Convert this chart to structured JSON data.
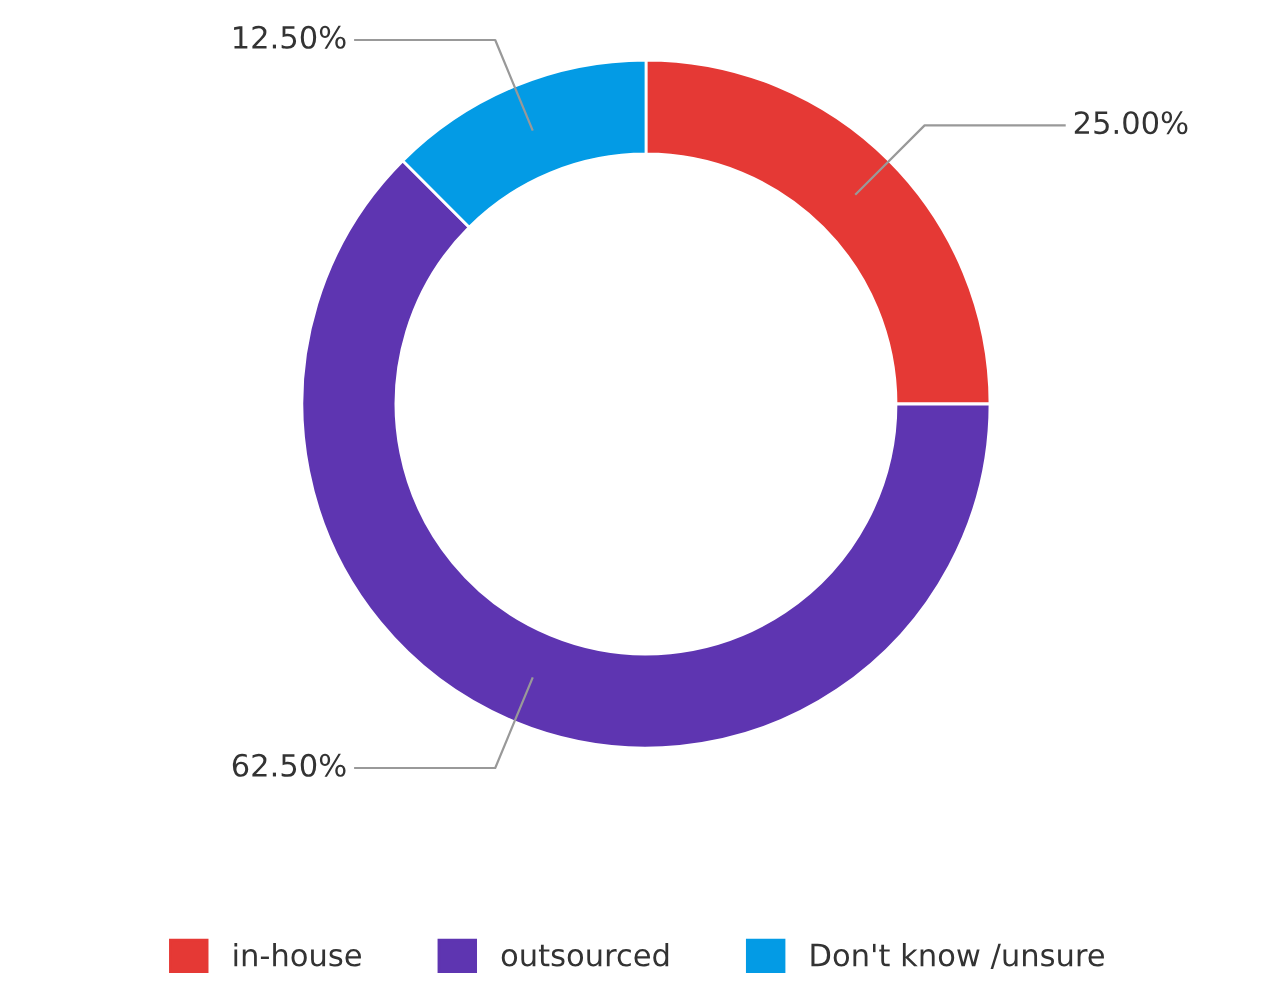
{
  "chart_data": {
    "type": "donut",
    "categories": [
      "in-house",
      "outsourced",
      "Don't know /unsure"
    ],
    "values": [
      25,
      62.5,
      12.5
    ],
    "colors": [
      "#e53935",
      "#5e35b1",
      "#039be5"
    ],
    "value_labels": [
      "25.00%",
      "62.50%",
      "12.50%"
    ],
    "legend": "bottom"
  }
}
